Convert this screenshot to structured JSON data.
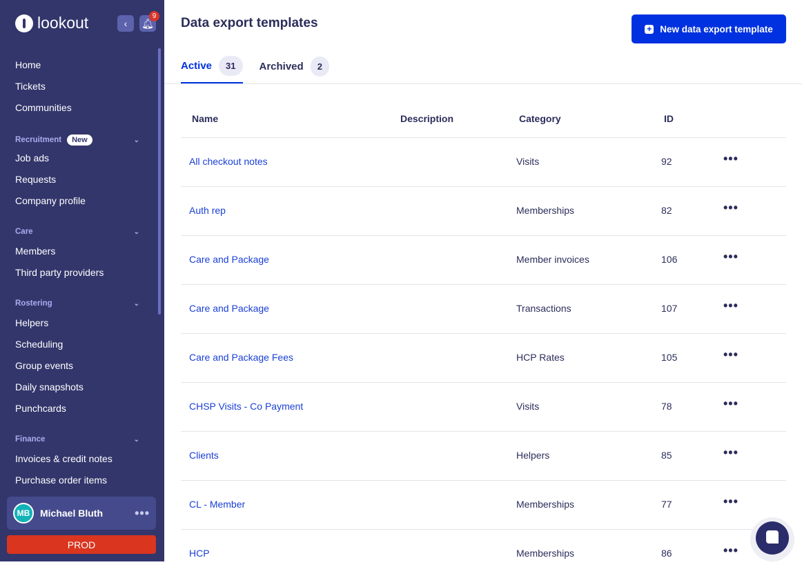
{
  "app": {
    "logo": "lookout",
    "notifications": "9"
  },
  "sidebar": {
    "items": [
      "Home",
      "Tickets",
      "Communities"
    ],
    "groups": [
      {
        "label": "Recruitment",
        "badge": "New",
        "items": [
          "Job ads",
          "Requests",
          "Company profile"
        ]
      },
      {
        "label": "Care",
        "items": [
          "Members",
          "Third party providers"
        ]
      },
      {
        "label": "Rostering",
        "items": [
          "Helpers",
          "Scheduling",
          "Group events",
          "Daily snapshots",
          "Punchcards"
        ]
      },
      {
        "label": "Finance",
        "items": [
          "Invoices & credit notes",
          "Purchase order items"
        ]
      }
    ],
    "user": {
      "initials": "MB",
      "name": "Michael Bluth"
    },
    "env": "PROD"
  },
  "header": {
    "title": "Data export templates",
    "new_button": "New data export template"
  },
  "tabs": [
    {
      "label": "Active",
      "count": "31"
    },
    {
      "label": "Archived",
      "count": "2"
    }
  ],
  "table": {
    "columns": [
      "Name",
      "Description",
      "Category",
      "ID"
    ],
    "rows": [
      {
        "name": "All checkout notes",
        "description": "",
        "category": "Visits",
        "id": "92"
      },
      {
        "name": "Auth rep",
        "description": "",
        "category": "Memberships",
        "id": "82"
      },
      {
        "name": "Care and Package",
        "description": "",
        "category": "Member invoices",
        "id": "106"
      },
      {
        "name": "Care and Package",
        "description": "",
        "category": "Transactions",
        "id": "107"
      },
      {
        "name": "Care and Package Fees",
        "description": "",
        "category": "HCP Rates",
        "id": "105"
      },
      {
        "name": "CHSP Visits - Co Payment",
        "description": "",
        "category": "Visits",
        "id": "78"
      },
      {
        "name": "Clients",
        "description": "",
        "category": "Helpers",
        "id": "85"
      },
      {
        "name": "CL - Member",
        "description": "",
        "category": "Memberships",
        "id": "77"
      },
      {
        "name": "HCP",
        "description": "",
        "category": "Memberships",
        "id": "86"
      }
    ]
  },
  "colors": {
    "sidebar": "#33366b",
    "accent": "#0031e0",
    "prod": "#d9351f"
  }
}
